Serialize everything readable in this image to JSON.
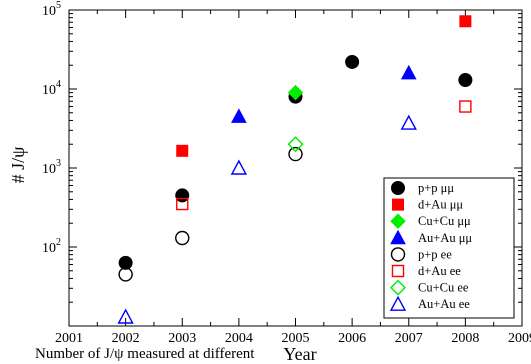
{
  "chart_data": {
    "type": "scatter",
    "title": "",
    "xlabel": "Year",
    "ylabel": "# J/ψ",
    "xlim": [
      2001,
      2009
    ],
    "ylim": [
      10,
      100000
    ],
    "yscale": "log",
    "x_ticks": [
      "2001",
      "2002",
      "2003",
      "2004",
      "2005",
      "2006",
      "2007",
      "2008",
      "2009"
    ],
    "y_ticks": [
      {
        "value": 100,
        "base": "10",
        "exp": "2"
      },
      {
        "value": 1000,
        "base": "10",
        "exp": "3"
      },
      {
        "value": 10000,
        "base": "10",
        "exp": "4"
      },
      {
        "value": 100000,
        "base": "10",
        "exp": "5"
      }
    ],
    "legend_position": "bottom-right",
    "series": [
      {
        "name": "p+p μμ",
        "marker": "circle",
        "filled": true,
        "color": "#000000",
        "x": [
          2002,
          2003,
          2005,
          2006,
          2008
        ],
        "y": [
          63,
          450,
          8000,
          22000,
          13000
        ]
      },
      {
        "name": "d+Au μμ",
        "marker": "square",
        "filled": true,
        "color": "#ff0000",
        "x": [
          2003,
          2008
        ],
        "y": [
          1650,
          72000
        ]
      },
      {
        "name": "Cu+Cu μμ",
        "marker": "diamond",
        "filled": true,
        "color": "#00ee00",
        "x": [
          2005
        ],
        "y": [
          9000
        ]
      },
      {
        "name": "Au+Au μμ",
        "marker": "triangle",
        "filled": true,
        "color": "#0000ff",
        "x": [
          2004,
          2007
        ],
        "y": [
          4500,
          16000
        ]
      },
      {
        "name": "p+p ee",
        "marker": "circle",
        "filled": false,
        "color": "#000000",
        "x": [
          2002,
          2003,
          2005
        ],
        "y": [
          45,
          130,
          1500
        ]
      },
      {
        "name": "d+Au ee",
        "marker": "square",
        "filled": false,
        "color": "#ff0000",
        "x": [
          2003,
          2008
        ],
        "y": [
          350,
          6000
        ]
      },
      {
        "name": "Cu+Cu ee",
        "marker": "diamond",
        "filled": false,
        "color": "#00ee00",
        "x": [
          2005
        ],
        "y": [
          2000
        ]
      },
      {
        "name": "Au+Au ee",
        "marker": "triangle",
        "filled": false,
        "color": "#0000ff",
        "x": [
          2002,
          2004,
          2007
        ],
        "y": [
          13,
          1000,
          3700
        ]
      }
    ]
  },
  "caption": "Number of J/ψ measured at different"
}
